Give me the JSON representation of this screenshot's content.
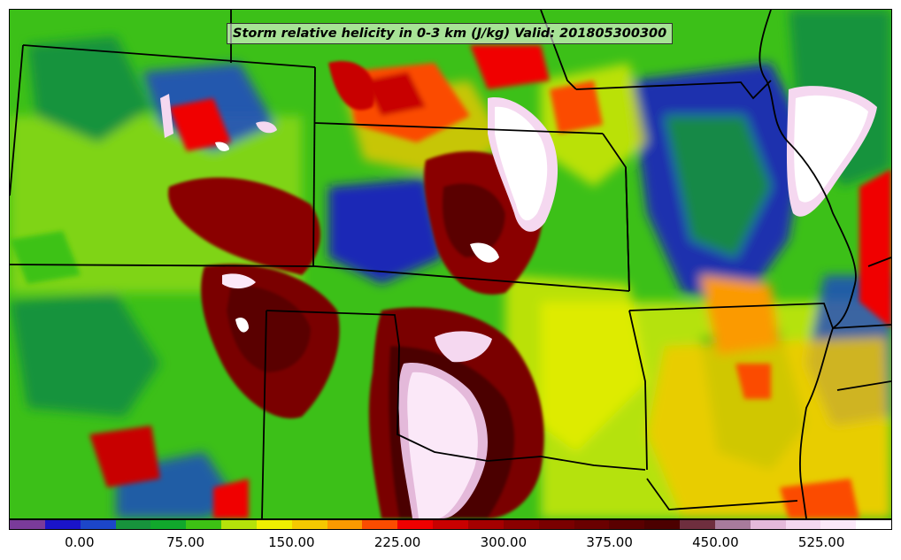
{
  "title": "Storm relative helicity in 0-3 km (J/kg) Valid: 201805300300",
  "colorbar": {
    "ticks": [
      "0.00",
      "75.00",
      "150.00",
      "225.00",
      "300.00",
      "375.00",
      "450.00",
      "525.00"
    ],
    "colors": [
      "#7a3b9a",
      "#1a14c8",
      "#1c46c8",
      "#17933c",
      "#11a82c",
      "#3dc214",
      "#b5e20a",
      "#f0f000",
      "#f5c800",
      "#fb9a00",
      "#fb4c00",
      "#f00000",
      "#c80000",
      "#a50000",
      "#8a0000",
      "#7a0000",
      "#6a0000",
      "#5a0000",
      "#4c0000",
      "#6e2e3e",
      "#a87b9c",
      "#e4b9da",
      "#f5d8f0",
      "#fbe8f8",
      "#ffffff"
    ]
  },
  "map": {
    "variable": "Storm relative helicity",
    "layer": "0-3 km",
    "units": "J/kg",
    "valid_time": "201805300300"
  }
}
